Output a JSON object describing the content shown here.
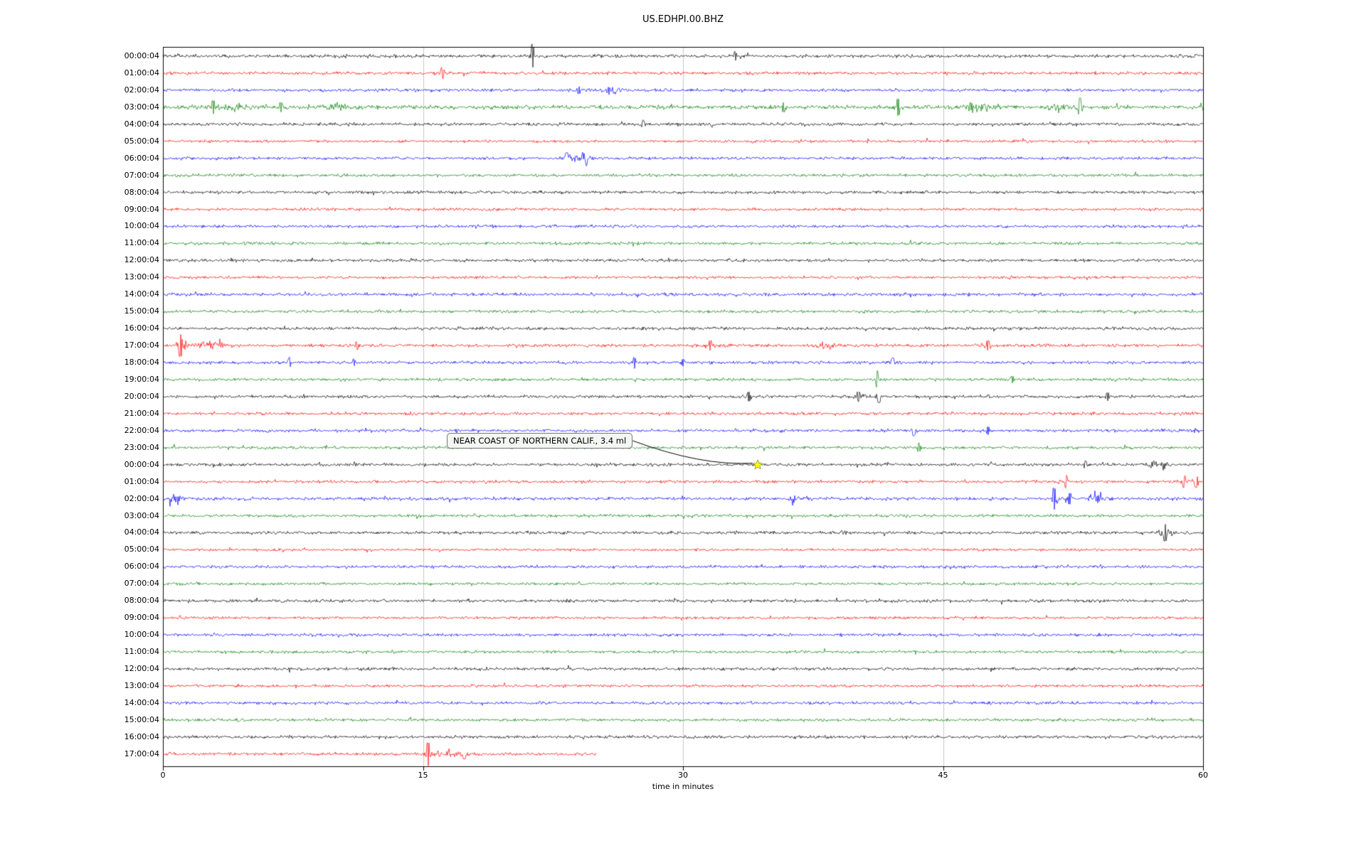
{
  "chart_data": {
    "type": "line",
    "title": "US.EDHPI.00.BHZ",
    "xlabel": "time in minutes",
    "xlim": [
      0,
      60
    ],
    "x_ticks": [
      0,
      15,
      30,
      45,
      60
    ],
    "grid": "vertical",
    "grid_color": "#c8c8c8",
    "colors": {
      "black": "#000000",
      "red": "#ff0000",
      "blue": "#0000ff",
      "green": "#008000"
    },
    "annotation": {
      "text": "NEAR COAST OF NORTHERN CALIF., 3.4 ml",
      "row_index": 24,
      "minute": 34.3,
      "marker": "star",
      "marker_color": "#ffff00"
    },
    "rows": [
      {
        "label": "00:00:04",
        "color": "black",
        "noise": 3.2,
        "end": 60,
        "events": [
          [
            21.3,
            17,
            0.12
          ],
          [
            33.0,
            5,
            0.08
          ]
        ]
      },
      {
        "label": "01:00:04",
        "color": "red",
        "noise": 3.0,
        "end": 60,
        "events": [
          [
            16.1,
            6,
            0.25
          ]
        ]
      },
      {
        "label": "02:00:04",
        "color": "blue",
        "noise": 3.0,
        "end": 60,
        "events": [
          [
            25.9,
            7,
            0.35
          ],
          [
            24.0,
            3,
            0.15
          ]
        ]
      },
      {
        "label": "03:00:04",
        "color": "green",
        "noise": 4.0,
        "end": 60,
        "events": [
          [
            2.9,
            7,
            0.3
          ],
          [
            4.2,
            5,
            0.6
          ],
          [
            6.8,
            4,
            0.15
          ],
          [
            10.1,
            7,
            0.5
          ],
          [
            35.8,
            4,
            0.2
          ],
          [
            42.4,
            10,
            0.2
          ],
          [
            46.9,
            7,
            0.8
          ],
          [
            51.6,
            9,
            0.5
          ],
          [
            52.9,
            12,
            0.12
          ]
        ]
      },
      {
        "label": "04:00:04",
        "color": "black",
        "noise": 3.1,
        "end": 60,
        "events": [
          [
            27.7,
            4,
            0.08
          ]
        ]
      },
      {
        "label": "05:00:04",
        "color": "red",
        "noise": 2.7,
        "end": 60,
        "events": []
      },
      {
        "label": "06:00:04",
        "color": "blue",
        "noise": 2.9,
        "end": 60,
        "events": [
          [
            24.2,
            16,
            0.45
          ],
          [
            23.3,
            6,
            0.25
          ]
        ]
      },
      {
        "label": "07:00:04",
        "color": "green",
        "noise": 2.9,
        "end": 60,
        "events": []
      },
      {
        "label": "08:00:04",
        "color": "black",
        "noise": 3.0,
        "end": 60,
        "events": []
      },
      {
        "label": "09:00:04",
        "color": "red",
        "noise": 2.7,
        "end": 60,
        "events": []
      },
      {
        "label": "10:00:04",
        "color": "blue",
        "noise": 2.9,
        "end": 60,
        "events": []
      },
      {
        "label": "11:00:04",
        "color": "green",
        "noise": 2.9,
        "end": 60,
        "events": []
      },
      {
        "label": "12:00:04",
        "color": "black",
        "noise": 3.0,
        "end": 60,
        "events": []
      },
      {
        "label": "13:00:04",
        "color": "red",
        "noise": 2.7,
        "end": 60,
        "events": []
      },
      {
        "label": "14:00:04",
        "color": "blue",
        "noise": 3.1,
        "end": 60,
        "events": []
      },
      {
        "label": "15:00:04",
        "color": "green",
        "noise": 2.9,
        "end": 60,
        "events": []
      },
      {
        "label": "16:00:04",
        "color": "black",
        "noise": 3.1,
        "end": 60,
        "events": []
      },
      {
        "label": "17:00:04",
        "color": "red",
        "noise": 3.1,
        "end": 60,
        "events": [
          [
            1.0,
            15,
            0.3
          ],
          [
            2.6,
            6,
            0.9
          ],
          [
            11.2,
            4,
            0.1
          ],
          [
            31.6,
            5,
            0.25
          ],
          [
            38.2,
            6,
            0.5
          ],
          [
            47.6,
            5,
            0.25
          ]
        ]
      },
      {
        "label": "18:00:04",
        "color": "blue",
        "noise": 3.0,
        "end": 60,
        "events": [
          [
            7.3,
            6,
            0.07
          ],
          [
            11.0,
            3,
            0.08
          ],
          [
            27.2,
            7,
            0.07
          ],
          [
            30.0,
            3,
            0.08
          ],
          [
            42.1,
            5,
            0.12
          ]
        ]
      },
      {
        "label": "19:00:04",
        "color": "green",
        "noise": 2.9,
        "end": 60,
        "events": [
          [
            41.2,
            12,
            0.08
          ],
          [
            49.0,
            3,
            0.12
          ]
        ]
      },
      {
        "label": "20:00:04",
        "color": "black",
        "noise": 3.0,
        "end": 60,
        "events": [
          [
            33.8,
            5,
            0.15
          ],
          [
            40.1,
            5,
            0.3
          ],
          [
            41.3,
            7,
            0.2
          ],
          [
            54.5,
            4,
            0.1
          ]
        ]
      },
      {
        "label": "21:00:04",
        "color": "red",
        "noise": 3.0,
        "end": 60,
        "events": []
      },
      {
        "label": "22:00:04",
        "color": "blue",
        "noise": 2.9,
        "end": 60,
        "events": [
          [
            43.3,
            6,
            0.12
          ],
          [
            47.6,
            4,
            0.1
          ]
        ]
      },
      {
        "label": "23:00:04",
        "color": "green",
        "noise": 2.9,
        "end": 60,
        "events": [
          [
            43.6,
            5,
            0.1
          ]
        ]
      },
      {
        "label": "00:00:04",
        "color": "black",
        "noise": 3.0,
        "end": 60,
        "events": [
          [
            53.2,
            3,
            0.15
          ],
          [
            57.4,
            8,
            0.5
          ]
        ]
      },
      {
        "label": "01:00:04",
        "color": "red",
        "noise": 2.9,
        "end": 60,
        "events": [
          [
            52.1,
            8,
            0.1
          ],
          [
            58.9,
            7,
            0.25
          ],
          [
            59.6,
            7,
            0.15
          ]
        ]
      },
      {
        "label": "02:00:04",
        "color": "blue",
        "noise": 3.1,
        "end": 60,
        "events": [
          [
            0.7,
            6,
            0.4
          ],
          [
            36.6,
            6,
            0.5
          ],
          [
            51.4,
            15,
            0.2
          ],
          [
            52.3,
            6,
            0.3
          ],
          [
            54.0,
            8,
            0.7
          ]
        ]
      },
      {
        "label": "03:00:04",
        "color": "green",
        "noise": 2.9,
        "end": 60,
        "events": []
      },
      {
        "label": "04:00:04",
        "color": "black",
        "noise": 3.0,
        "end": 60,
        "events": [
          [
            57.8,
            11,
            0.3
          ]
        ]
      },
      {
        "label": "05:00:04",
        "color": "red",
        "noise": 2.5,
        "end": 60,
        "events": []
      },
      {
        "label": "06:00:04",
        "color": "blue",
        "noise": 2.8,
        "end": 60,
        "events": []
      },
      {
        "label": "07:00:04",
        "color": "green",
        "noise": 2.8,
        "end": 60,
        "events": []
      },
      {
        "label": "08:00:04",
        "color": "black",
        "noise": 3.0,
        "end": 60,
        "events": []
      },
      {
        "label": "09:00:04",
        "color": "red",
        "noise": 2.7,
        "end": 60,
        "events": []
      },
      {
        "label": "10:00:04",
        "color": "blue",
        "noise": 2.9,
        "end": 60,
        "events": []
      },
      {
        "label": "11:00:04",
        "color": "green",
        "noise": 2.9,
        "end": 60,
        "events": []
      },
      {
        "label": "12:00:04",
        "color": "black",
        "noise": 3.0,
        "end": 60,
        "events": []
      },
      {
        "label": "13:00:04",
        "color": "red",
        "noise": 2.7,
        "end": 60,
        "events": []
      },
      {
        "label": "14:00:04",
        "color": "blue",
        "noise": 2.9,
        "end": 60,
        "events": []
      },
      {
        "label": "15:00:04",
        "color": "green",
        "noise": 2.9,
        "end": 60,
        "events": []
      },
      {
        "label": "16:00:04",
        "color": "black",
        "noise": 3.0,
        "end": 60,
        "events": []
      },
      {
        "label": "17:00:04",
        "color": "red",
        "noise": 3.0,
        "end": 25,
        "events": [
          [
            15.3,
            16,
            0.18
          ],
          [
            16.3,
            6,
            0.6
          ],
          [
            17.4,
            5,
            0.25
          ]
        ]
      }
    ]
  }
}
